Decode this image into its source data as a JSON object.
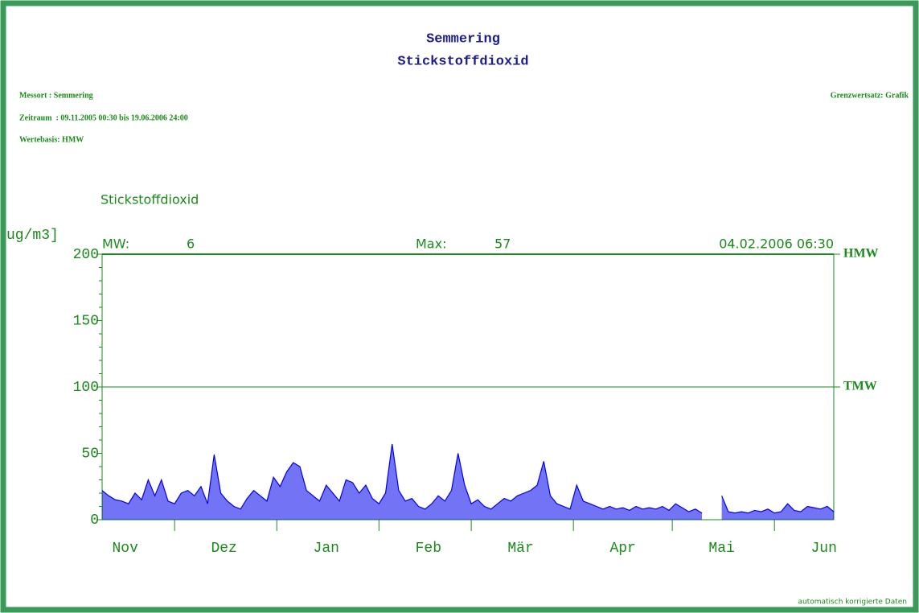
{
  "chart_data": {
    "type": "line",
    "title": "Semmering",
    "subtitle": "Stickstoffdioxid",
    "messort": "Messort : Semmering",
    "zeitraum": "Zeitraum  : 09.11.2005 00:30 bis 19.06.2006 24:00",
    "wertebasis": "Wertebasis: HMW",
    "grenzwertsatz": "Grenzwertsatz: Grafik",
    "component": "Stickstoffdioxid",
    "y_label": "ug/m3]",
    "mw_label": "MW:",
    "mw_value": 6,
    "max_label": "Max:",
    "max_value": 57,
    "max_time": "04.02.2006 06:30",
    "footer": "automatisch korrigierte Daten",
    "thresholds": [
      {
        "label": "HMW",
        "value": 200
      },
      {
        "label": "TMW",
        "value": 100
      }
    ],
    "xlim": [
      0,
      222
    ],
    "xticks": [
      {
        "value": -8,
        "label": "Nov"
      },
      {
        "value": 22,
        "label": "Dez"
      },
      {
        "value": 53,
        "label": "Jan"
      },
      {
        "value": 84,
        "label": "Feb"
      },
      {
        "value": 112,
        "label": "Mär"
      },
      {
        "value": 143,
        "label": "Apr"
      },
      {
        "value": 173,
        "label": "Mai"
      },
      {
        "value": 204,
        "label": "Jun"
      }
    ],
    "ylim": [
      0,
      200
    ],
    "yticks": [
      0,
      50,
      100,
      150,
      200
    ],
    "series": [
      {
        "name": "Stickstoffdioxid",
        "color": "#0000ee",
        "x": [
          0,
          2,
          4,
          6,
          8,
          10,
          12,
          14,
          16,
          18,
          20,
          22,
          24,
          26,
          28,
          30,
          32,
          34,
          36,
          38,
          40,
          42,
          44,
          46,
          48,
          50,
          52,
          54,
          56,
          58,
          60,
          62,
          64,
          66,
          68,
          70,
          72,
          74,
          76,
          78,
          80,
          82,
          84,
          86,
          88,
          90,
          92,
          94,
          96,
          98,
          100,
          102,
          104,
          106,
          108,
          110,
          112,
          114,
          116,
          118,
          120,
          122,
          124,
          126,
          128,
          130,
          132,
          134,
          136,
          138,
          140,
          142,
          144,
          146,
          148,
          150,
          152,
          154,
          156,
          158,
          160,
          162,
          164,
          166,
          168,
          170,
          172,
          174,
          176,
          178,
          180,
          182,
          184,
          186,
          188,
          190,
          192,
          194,
          196,
          198,
          200,
          202,
          204,
          206,
          208,
          210,
          212,
          214,
          216,
          218,
          220,
          222
        ],
        "values": [
          22,
          18,
          15,
          14,
          12,
          20,
          15,
          30,
          18,
          30,
          14,
          12,
          20,
          22,
          18,
          25,
          12,
          49,
          20,
          14,
          10,
          8,
          16,
          22,
          18,
          14,
          32,
          25,
          36,
          43,
          40,
          22,
          18,
          14,
          26,
          20,
          14,
          30,
          28,
          20,
          26,
          16,
          12,
          20,
          57,
          22,
          14,
          16,
          10,
          8,
          12,
          18,
          14,
          22,
          50,
          26,
          12,
          15,
          10,
          8,
          12,
          16,
          14,
          18,
          20,
          22,
          26,
          44,
          18,
          12,
          10,
          8,
          26,
          14,
          12,
          10,
          8,
          10,
          8,
          9,
          7,
          10,
          8,
          9,
          8,
          10,
          7,
          12,
          9,
          6,
          8,
          5,
          null,
          null,
          18,
          6,
          5,
          6,
          5,
          7,
          6,
          8,
          5,
          6,
          12,
          7,
          6,
          10,
          9,
          8,
          10,
          6
        ]
      }
    ]
  }
}
